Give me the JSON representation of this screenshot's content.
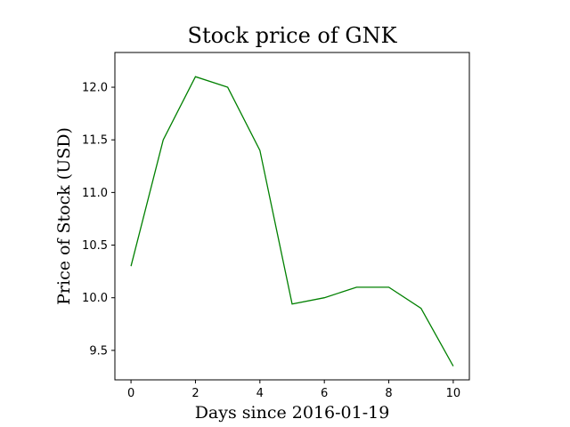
{
  "chart_data": {
    "type": "line",
    "title": "Stock price of GNK",
    "xlabel": "Days since 2016-01-19",
    "ylabel": "Price of Stock (USD)",
    "xlim": [
      -0.5,
      10.5
    ],
    "ylim": [
      9.22,
      12.33
    ],
    "xticks": [
      0,
      2,
      4,
      6,
      8,
      10
    ],
    "xtick_labels": [
      "0",
      "2",
      "4",
      "6",
      "8",
      "10"
    ],
    "yticks": [
      9.5,
      10.0,
      10.5,
      11.0,
      11.5,
      12.0
    ],
    "ytick_labels": [
      "9.5",
      "10.0",
      "10.5",
      "11.0",
      "11.5",
      "12.0"
    ],
    "grid": false,
    "series": [
      {
        "color": "#008000",
        "x": [
          0,
          1,
          2,
          3,
          4,
          5,
          6,
          7,
          8,
          9,
          10
        ],
        "y": [
          10.3,
          11.5,
          12.1,
          12.0,
          11.4,
          9.94,
          10.0,
          10.1,
          10.1,
          9.9,
          9.35
        ]
      }
    ]
  }
}
